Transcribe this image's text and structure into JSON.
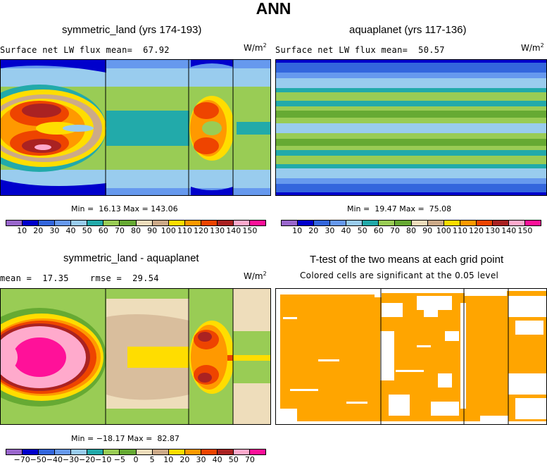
{
  "title": "ANN",
  "palette_main": [
    "#9966cc",
    "#0000cc",
    "#3366dd",
    "#6699ee",
    "#99ccee",
    "#22aaaa",
    "#99cc55",
    "#66aa33",
    "#eeddbb",
    "#ccaa88",
    "#ffdd00",
    "#ff9900",
    "#ee4400",
    "#aa2222",
    "#ffaacc",
    "#ff1199"
  ],
  "palette_diff": [
    "#9966cc",
    "#0000cc",
    "#3366dd",
    "#6699ee",
    "#99ccee",
    "#22aaaa",
    "#99cc55",
    "#66aa33",
    "#eeddbb",
    "#ccaa88",
    "#ffdd00",
    "#ff9900",
    "#ee4400",
    "#aa2222",
    "#ffaacc",
    "#ff1199"
  ],
  "sig_color": "#ffa500",
  "panels": {
    "tl": {
      "title": "symmetric_land (yrs 174-193)",
      "stat": "Surface net LW flux mean=  67.92",
      "units": "W/m",
      "units_sup": "2",
      "minmax": "Min =  16.13 Max = 143.06"
    },
    "tr": {
      "title": "aquaplanet (yrs 117-136)",
      "stat": "Surface net LW flux mean=  50.57",
      "units": "W/m",
      "units_sup": "2",
      "minmax": "Min =  19.47 Max =  75.08"
    },
    "bl": {
      "title": "symmetric_land - aquaplanet",
      "stat": "mean =  17.35    rmse =  29.54",
      "units": "W/m",
      "units_sup": "2",
      "minmax": "Min = −18.17 Max =  82.87"
    },
    "br": {
      "title": "T-test of the two means at each grid point",
      "subtitle": "Colored cells are significant at the 0.05 level"
    }
  },
  "chart_data": [
    {
      "type": "heatmap",
      "title": "symmetric_land (yrs 174-193)",
      "subtitle": "Surface net LW flux mean=  67.92",
      "units": "W/m2",
      "min": 16.13,
      "max": 143.06,
      "mean": 67.92,
      "levels": [
        "10",
        "20",
        "30",
        "40",
        "50",
        "60",
        "70",
        "80",
        "90",
        "100",
        "110",
        "120",
        "130",
        "140",
        "150"
      ]
    },
    {
      "type": "heatmap",
      "title": "aquaplanet (yrs 117-136)",
      "subtitle": "Surface net LW flux mean=  50.57",
      "units": "W/m2",
      "min": 19.47,
      "max": 75.08,
      "mean": 50.57,
      "levels": [
        "10",
        "20",
        "30",
        "40",
        "50",
        "60",
        "70",
        "80",
        "90",
        "100",
        "110",
        "120",
        "130",
        "140",
        "150"
      ]
    },
    {
      "type": "heatmap",
      "title": "symmetric_land - aquaplanet",
      "units": "W/m2",
      "mean": 17.35,
      "rmse": 29.54,
      "min": -18.17,
      "max": 82.87,
      "levels": [
        "−70",
        "−50",
        "−40",
        "−30",
        "−20",
        "−10",
        "−5",
        "0",
        "5",
        "10",
        "20",
        "30",
        "40",
        "50",
        "70"
      ]
    },
    {
      "type": "heatmap",
      "title": "T-test of the two means at each grid point",
      "subtitle": "Colored cells are significant at the 0.05 level"
    }
  ]
}
